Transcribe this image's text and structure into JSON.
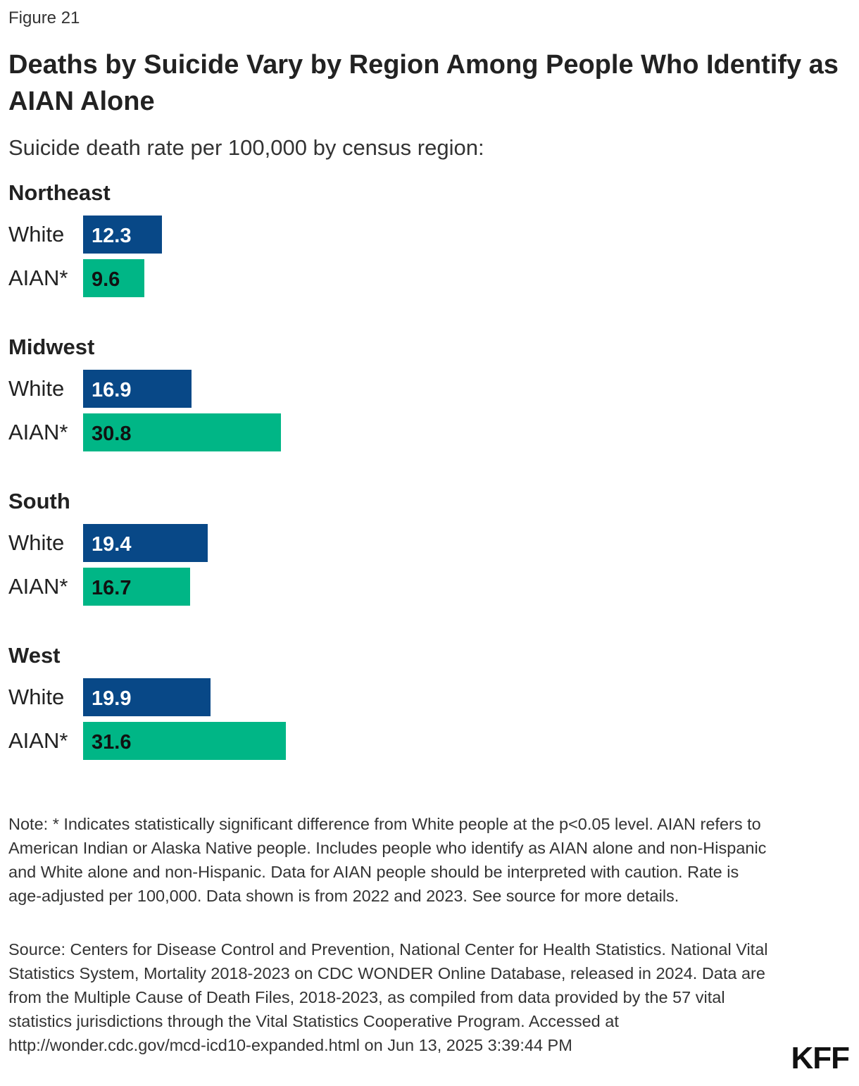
{
  "figure_label": "Figure 21",
  "brand": "KFF",
  "colors": {
    "white_series": "#084887",
    "aian_series": "#00B686",
    "white_label_text": "#ffffff",
    "aian_label_text": "#111111"
  },
  "chart_data": {
    "type": "bar",
    "orientation": "horizontal",
    "title": "Deaths by Suicide Vary by Region Among People Who Identify as AIAN Alone",
    "subtitle": "Suicide death rate per 100,000 by census region:",
    "series_names": [
      "White",
      "AIAN*"
    ],
    "groups": [
      {
        "region": "Northeast",
        "bars": [
          {
            "label": "White",
            "value": 12.3,
            "value_text": "12.3"
          },
          {
            "label": "AIAN*",
            "value": 9.6,
            "value_text": "9.6"
          }
        ]
      },
      {
        "region": "Midwest",
        "bars": [
          {
            "label": "White",
            "value": 16.9,
            "value_text": "16.9"
          },
          {
            "label": "AIAN*",
            "value": 30.8,
            "value_text": "30.8"
          }
        ]
      },
      {
        "region": "South",
        "bars": [
          {
            "label": "White",
            "value": 19.4,
            "value_text": "19.4"
          },
          {
            "label": "AIAN*",
            "value": 16.7,
            "value_text": "16.7"
          }
        ]
      },
      {
        "region": "West",
        "bars": [
          {
            "label": "White",
            "value": 19.9,
            "value_text": "19.9"
          },
          {
            "label": "AIAN*",
            "value": 31.6,
            "value_text": "31.6"
          }
        ]
      }
    ],
    "xlim": [
      0,
      31.6
    ],
    "grid": false
  },
  "note": "Note: * Indicates statistically significant difference from White people at the p<0.05 level. AIAN refers to American Indian or Alaska Native people. Includes people who identify as AIAN alone and non-Hispanic and White alone and non-Hispanic. Data for AIAN people should be interpreted with caution. Rate is age-adjusted per 100,000. Data shown is from 2022 and 2023. See source for more details.",
  "source": "Source: Centers for Disease Control and Prevention, National Center for Health Statistics. National Vital Statistics System, Mortality 2018-2023 on CDC WONDER Online Database, released in 2024. Data are from the Multiple Cause of Death Files, 2018-2023, as compiled from data provided by the 57 vital statistics jurisdictions through the Vital Statistics Cooperative Program. Accessed at http://wonder.cdc.gov/mcd-icd10-expanded.html on Jun 13, 2025 3:39:44 PM"
}
